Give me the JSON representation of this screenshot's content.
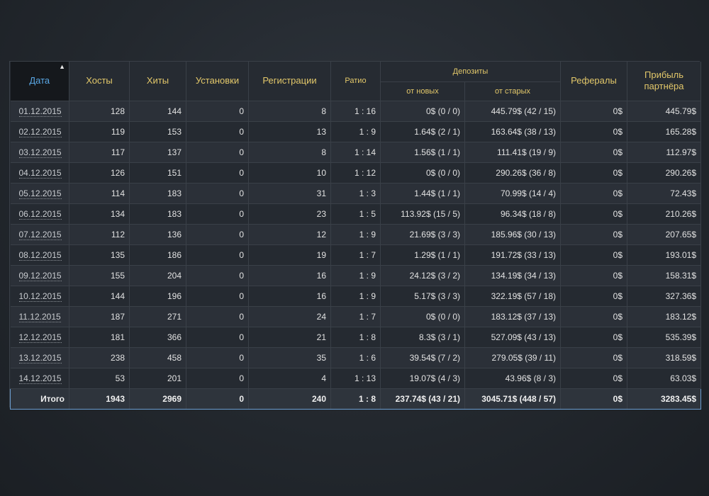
{
  "headers": {
    "date": "Дата",
    "hosts": "Хосты",
    "hits": "Хиты",
    "installs": "Установки",
    "registrations": "Регистрации",
    "ratio": "Ратио",
    "deposits": "Депозиты",
    "deposits_new": "от новых",
    "deposits_old": "от старых",
    "referrals": "Рефералы",
    "profit": "Прибыль партнёра"
  },
  "sort_indicator": "▲",
  "rows": [
    {
      "date": "01.12.2015",
      "hosts": "128",
      "hits": "144",
      "installs": "0",
      "registrations": "8",
      "ratio": "1 : 16",
      "dep_new": "0$ (0 / 0)",
      "dep_old": "445.79$ (42 / 15)",
      "referrals": "0$",
      "profit": "445.79$"
    },
    {
      "date": "02.12.2015",
      "hosts": "119",
      "hits": "153",
      "installs": "0",
      "registrations": "13",
      "ratio": "1 : 9",
      "dep_new": "1.64$ (2 / 1)",
      "dep_old": "163.64$ (38 / 13)",
      "referrals": "0$",
      "profit": "165.28$"
    },
    {
      "date": "03.12.2015",
      "hosts": "117",
      "hits": "137",
      "installs": "0",
      "registrations": "8",
      "ratio": "1 : 14",
      "dep_new": "1.56$ (1 / 1)",
      "dep_old": "111.41$ (19 / 9)",
      "referrals": "0$",
      "profit": "112.97$"
    },
    {
      "date": "04.12.2015",
      "hosts": "126",
      "hits": "151",
      "installs": "0",
      "registrations": "10",
      "ratio": "1 : 12",
      "dep_new": "0$ (0 / 0)",
      "dep_old": "290.26$ (36 / 8)",
      "referrals": "0$",
      "profit": "290.26$"
    },
    {
      "date": "05.12.2015",
      "hosts": "114",
      "hits": "183",
      "installs": "0",
      "registrations": "31",
      "ratio": "1 : 3",
      "dep_new": "1.44$ (1 / 1)",
      "dep_old": "70.99$ (14 / 4)",
      "referrals": "0$",
      "profit": "72.43$"
    },
    {
      "date": "06.12.2015",
      "hosts": "134",
      "hits": "183",
      "installs": "0",
      "registrations": "23",
      "ratio": "1 : 5",
      "dep_new": "113.92$ (15 / 5)",
      "dep_old": "96.34$ (18 / 8)",
      "referrals": "0$",
      "profit": "210.26$"
    },
    {
      "date": "07.12.2015",
      "hosts": "112",
      "hits": "136",
      "installs": "0",
      "registrations": "12",
      "ratio": "1 : 9",
      "dep_new": "21.69$ (3 / 3)",
      "dep_old": "185.96$ (30 / 13)",
      "referrals": "0$",
      "profit": "207.65$"
    },
    {
      "date": "08.12.2015",
      "hosts": "135",
      "hits": "186",
      "installs": "0",
      "registrations": "19",
      "ratio": "1 : 7",
      "dep_new": "1.29$ (1 / 1)",
      "dep_old": "191.72$ (33 / 13)",
      "referrals": "0$",
      "profit": "193.01$"
    },
    {
      "date": "09.12.2015",
      "hosts": "155",
      "hits": "204",
      "installs": "0",
      "registrations": "16",
      "ratio": "1 : 9",
      "dep_new": "24.12$ (3 / 2)",
      "dep_old": "134.19$ (34 / 13)",
      "referrals": "0$",
      "profit": "158.31$"
    },
    {
      "date": "10.12.2015",
      "hosts": "144",
      "hits": "196",
      "installs": "0",
      "registrations": "16",
      "ratio": "1 : 9",
      "dep_new": "5.17$ (3 / 3)",
      "dep_old": "322.19$ (57 / 18)",
      "referrals": "0$",
      "profit": "327.36$"
    },
    {
      "date": "11.12.2015",
      "hosts": "187",
      "hits": "271",
      "installs": "0",
      "registrations": "24",
      "ratio": "1 : 7",
      "dep_new": "0$ (0 / 0)",
      "dep_old": "183.12$ (37 / 13)",
      "referrals": "0$",
      "profit": "183.12$"
    },
    {
      "date": "12.12.2015",
      "hosts": "181",
      "hits": "366",
      "installs": "0",
      "registrations": "21",
      "ratio": "1 : 8",
      "dep_new": "8.3$ (3 / 1)",
      "dep_old": "527.09$ (43 / 13)",
      "referrals": "0$",
      "profit": "535.39$"
    },
    {
      "date": "13.12.2015",
      "hosts": "238",
      "hits": "458",
      "installs": "0",
      "registrations": "35",
      "ratio": "1 : 6",
      "dep_new": "39.54$ (7 / 2)",
      "dep_old": "279.05$ (39 / 11)",
      "referrals": "0$",
      "profit": "318.59$"
    },
    {
      "date": "14.12.2015",
      "hosts": "53",
      "hits": "201",
      "installs": "0",
      "registrations": "4",
      "ratio": "1 : 13",
      "dep_new": "19.07$ (4 / 3)",
      "dep_old": "43.96$ (8 / 3)",
      "referrals": "0$",
      "profit": "63.03$"
    }
  ],
  "total": {
    "label": "Итого",
    "hosts": "1943",
    "hits": "2969",
    "installs": "0",
    "registrations": "240",
    "ratio": "1 : 8",
    "dep_new": "237.74$ (43 / 21)",
    "dep_old": "3045.71$ (448 / 57)",
    "referrals": "0$",
    "profit": "3283.45$"
  }
}
